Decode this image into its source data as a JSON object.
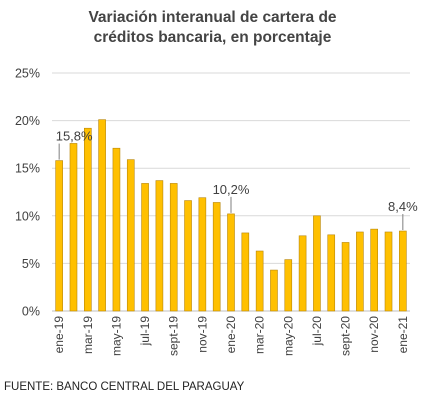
{
  "title_line1": "Variación interanual de cartera de",
  "title_line2": "créditos bancaria, en porcentaje",
  "source": "FUENTE: BANCO CENTRAL DEL PARAGUAY",
  "colors": {
    "bar_fill": "#FFC000",
    "bar_edge": "#B8860B",
    "axis_text": "#404040",
    "grid": "#D9D9D9"
  },
  "chart_data": {
    "type": "bar",
    "title": "Variación interanual de cartera de créditos bancaria, en porcentaje",
    "ylim": [
      0,
      25
    ],
    "y_ticks": [
      "0%",
      "5%",
      "10%",
      "15%",
      "20%",
      "25%"
    ],
    "grid": true,
    "categories": [
      "ene-19",
      "feb-19",
      "mar-19",
      "abr-19",
      "may-19",
      "jun-19",
      "jul-19",
      "ago-19",
      "sept-19",
      "oct-19",
      "nov-19",
      "dic-19",
      "ene-20",
      "feb-20",
      "mar-20",
      "abr-20",
      "may-20",
      "jun-20",
      "jul-20",
      "ago-20",
      "sept-20",
      "oct-20",
      "nov-20",
      "dic-20",
      "ene-21"
    ],
    "x_tick_labels": [
      "ene-19",
      "",
      "mar-19",
      "",
      "may-19",
      "",
      "jul-19",
      "",
      "sept-19",
      "",
      "nov-19",
      "",
      "ene-20",
      "",
      "mar-20",
      "",
      "may-20",
      "",
      "jul-20",
      "",
      "sept-20",
      "",
      "nov-20",
      "",
      "ene-21"
    ],
    "values": [
      15.8,
      17.6,
      19.2,
      20.1,
      17.1,
      15.9,
      13.4,
      13.7,
      13.4,
      11.6,
      11.9,
      11.4,
      10.2,
      8.2,
      6.3,
      4.3,
      5.4,
      7.9,
      10.0,
      8.0,
      7.2,
      8.3,
      8.6,
      8.3,
      8.4
    ],
    "annotations": [
      {
        "index": 0,
        "label": "15,8%"
      },
      {
        "index": 12,
        "label": "10,2%"
      },
      {
        "index": 24,
        "label": "8,4%"
      }
    ]
  }
}
